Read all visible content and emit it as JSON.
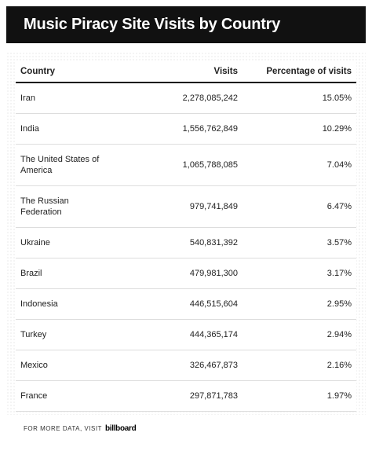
{
  "header": {
    "title": "Music Piracy Site Visits by Country"
  },
  "table": {
    "columns": [
      "Country",
      "Visits",
      "Percentage of visits"
    ],
    "rows": [
      [
        "Iran",
        "2,278,085,242",
        "15.05%"
      ],
      [
        "India",
        "1,556,762,849",
        "10.29%"
      ],
      [
        "The United States of America",
        "1,065,788,085",
        "7.04%"
      ],
      [
        "The Russian Federation",
        "979,741,849",
        "6.47%"
      ],
      [
        "Ukraine",
        "540,831,392",
        "3.57%"
      ],
      [
        "Brazil",
        "479,981,300",
        "3.17%"
      ],
      [
        "Indonesia",
        "446,515,604",
        "2.95%"
      ],
      [
        "Turkey",
        "444,365,174",
        "2.94%"
      ],
      [
        "Mexico",
        "326,467,873",
        "2.16%"
      ],
      [
        "France",
        "297,871,783",
        "1.97%"
      ]
    ]
  },
  "footer": {
    "text": "FOR MORE DATA, VISIT",
    "brand": "billboard"
  }
}
